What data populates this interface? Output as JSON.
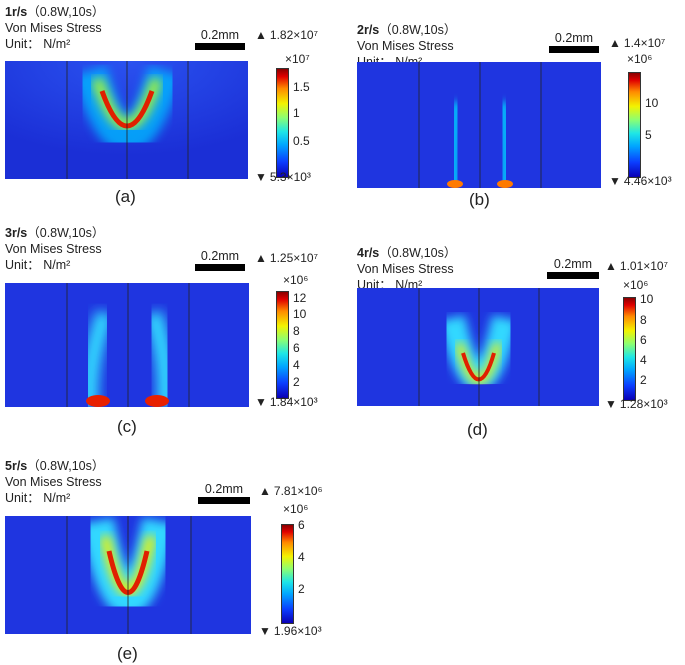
{
  "panels": [
    {
      "speed": "1r/s",
      "params": "（0.8W,10s）",
      "title": "Von Mises Stress",
      "unit": "Unit： N/m²",
      "scale": "0.2mm",
      "max": "1.82×10⁷",
      "min": "5.3×10³",
      "exp": "×10⁷",
      "ticks": [
        "1.5",
        "1",
        "0.5"
      ],
      "caption": "(a)"
    },
    {
      "speed": "2r/s",
      "params": "（0.8W,10s）",
      "title": "Von Mises Stress",
      "unit": "Unit： N/m²",
      "scale": "0.2mm",
      "max": "1.4×10⁷",
      "min": "4.46×10³",
      "exp": "×10⁶",
      "ticks": [
        "10",
        "5"
      ],
      "caption": "(b)"
    },
    {
      "speed": "3r/s",
      "params": "（0.8W,10s）",
      "title": "Von Mises Stress",
      "unit": "Unit： N/m²",
      "scale": "0.2mm",
      "max": "1.25×10⁷",
      "min": "1.84×10³",
      "exp": "×10⁶",
      "ticks": [
        "12",
        "10",
        "8",
        "6",
        "4",
        "2"
      ],
      "caption": "(c)"
    },
    {
      "speed": "4r/s",
      "params": "（0.8W,10s）",
      "title": "Von Mises Stress",
      "unit": "Unit： N/m²",
      "scale": "0.2mm",
      "max": "1.01×10⁷",
      "min": "1.28×10³",
      "exp": "×10⁶",
      "ticks": [
        "10",
        "8",
        "6",
        "4",
        "2"
      ],
      "caption": "(d)"
    },
    {
      "speed": "5r/s",
      "params": "（0.8W,10s）",
      "title": "Von Mises Stress",
      "unit": "Unit： N/m²",
      "scale": "0.2mm",
      "max": "7.81×10⁶",
      "min": "1.96×10³",
      "exp": "×10⁶",
      "ticks": [
        "6",
        "4",
        "2"
      ],
      "caption": "(e)"
    }
  ],
  "colors": {
    "field": "#1f35e0",
    "hot": "#e02000",
    "warm": "#f5e000",
    "cool": "#2ee0ff"
  }
}
